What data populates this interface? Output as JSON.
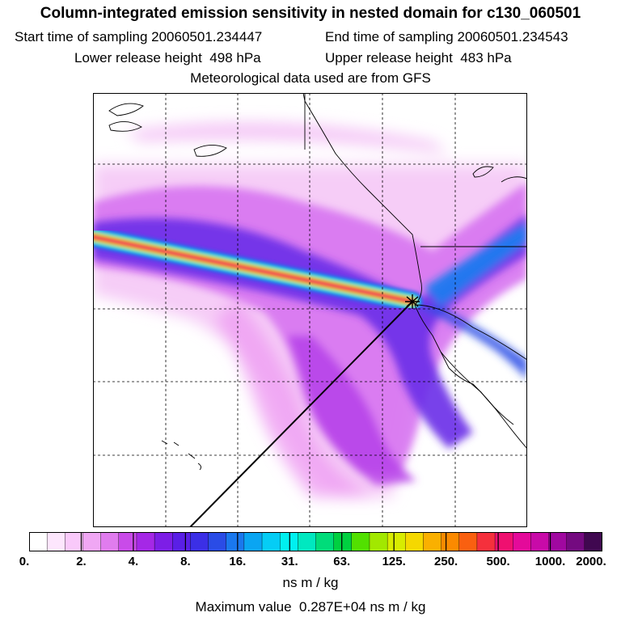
{
  "header": {
    "title": "Column-integrated emission sensitivity in nested domain for c130_060501",
    "start_label": "Start time of sampling",
    "start_value": "20060501.234447",
    "end_label": "End time of sampling",
    "end_value": "20060501.234543",
    "lower_label": "Lower release height",
    "lower_value": "498 hPa",
    "upper_label": "Upper release height",
    "upper_value": "483 hPa",
    "met_note": "Meteorological data used are from GFS"
  },
  "colorbar": {
    "tick_labels": [
      "0.",
      "2.",
      "4.",
      "8.",
      "16.",
      "31.",
      "63.",
      "125.",
      "250.",
      "500.",
      "1000.",
      "2000."
    ],
    "units": "ns m / kg",
    "colors": [
      "#ffffff",
      "#fde6fd",
      "#f9c9fa",
      "#f0a7f4",
      "#e07cee",
      "#c94be9",
      "#a528e6",
      "#7d1ee6",
      "#5a1fe6",
      "#3b2fe6",
      "#2a4ce6",
      "#1a78ee",
      "#0aa5f2",
      "#05cdf5",
      "#00f0f0",
      "#00e8c0",
      "#00dc7a",
      "#00d040",
      "#52e000",
      "#a2e800",
      "#d8ec00",
      "#f5d800",
      "#fab000",
      "#fb8a00",
      "#f96010",
      "#f5303c",
      "#ef1070",
      "#e40a9a",
      "#c80aa8",
      "#a008a0",
      "#740a80",
      "#400850"
    ],
    "range_min": 0,
    "range_max": 2000
  },
  "footer": {
    "max_label": "Maximum value",
    "max_value": "0.287E+04",
    "max_units": "ns m / kg"
  }
}
